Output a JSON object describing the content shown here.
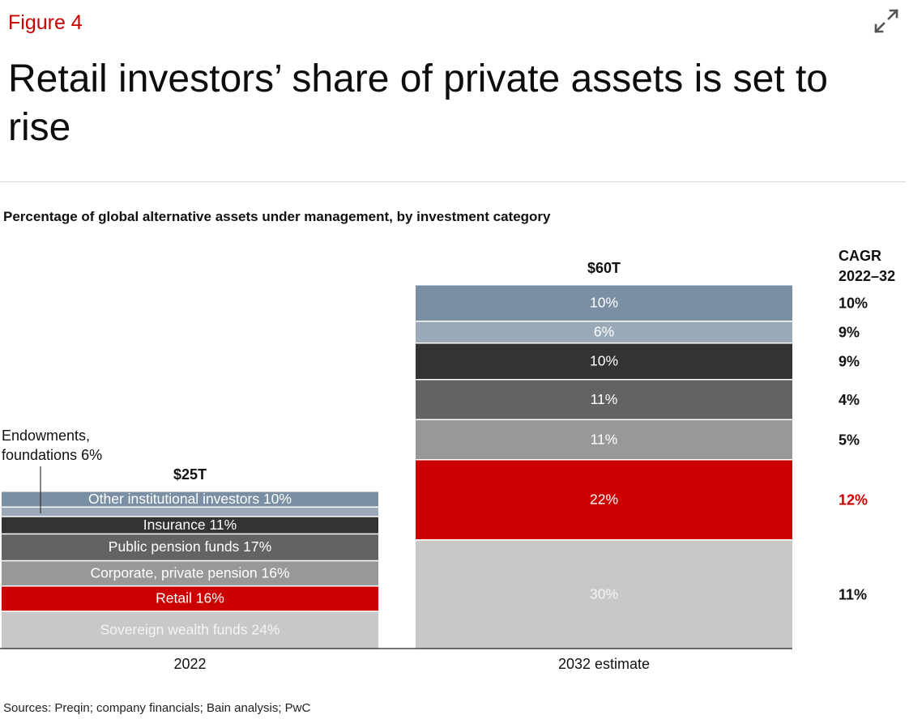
{
  "header": {
    "figure_label": "Figure 4",
    "title": "Retail investors’ share of private assets is set to rise",
    "subtitle": "Percentage of global alternative assets under management, by investment category",
    "expand_icon": "expand-arrows-icon",
    "source": "Sources: Preqin; company financials; Bain analysis; PwC"
  },
  "colors": {
    "accent": "#cc0000",
    "other_institutional": "#7a8fa3",
    "endowments": "#9aaab8",
    "insurance": "#333333",
    "public_pension": "#636363",
    "corporate_pension": "#989898",
    "retail": "#cc0000",
    "sovereign": "#c8c8c8"
  },
  "chart_data": {
    "type": "bar",
    "stacked": true,
    "normalized": "percent",
    "categories": [
      "2022",
      "2032 estimate"
    ],
    "totals": [
      "$25T",
      "$60T"
    ],
    "series": [
      {
        "name": "Sovereign wealth funds",
        "values": [
          24,
          30
        ],
        "cagr": "11%",
        "color": "sovereign"
      },
      {
        "name": "Retail",
        "values": [
          16,
          22
        ],
        "cagr": "12%",
        "color": "retail"
      },
      {
        "name": "Corporate, private pension",
        "values": [
          16,
          11
        ],
        "cagr": "5%",
        "color": "corporate_pension"
      },
      {
        "name": "Public pension funds",
        "values": [
          17,
          11
        ],
        "cagr": "4%",
        "color": "public_pension"
      },
      {
        "name": "Insurance",
        "values": [
          11,
          10
        ],
        "cagr": "9%",
        "color": "insurance"
      },
      {
        "name": "Endowments, foundations",
        "values": [
          6,
          6
        ],
        "cagr": "9%",
        "color": "endowments"
      },
      {
        "name": "Other institutional investors",
        "values": [
          10,
          10
        ],
        "cagr": "10%",
        "color": "other_institutional"
      }
    ],
    "bar_labels_2022": [
      "Sovereign wealth funds 24%",
      "Retail 16%",
      "Corporate, private pension 16%",
      "Public pension funds 17%",
      "Insurance 11%",
      "",
      "Other institutional investors 10%"
    ],
    "callout_2022": [
      "Endowments,",
      "foundations 6%"
    ],
    "bar_labels_2032": [
      "30%",
      "22%",
      "11%",
      "11%",
      "10%",
      "6%",
      "10%"
    ],
    "cagr_header": [
      "CAGR",
      "2022–32"
    ],
    "highlight_series": "Retail"
  }
}
